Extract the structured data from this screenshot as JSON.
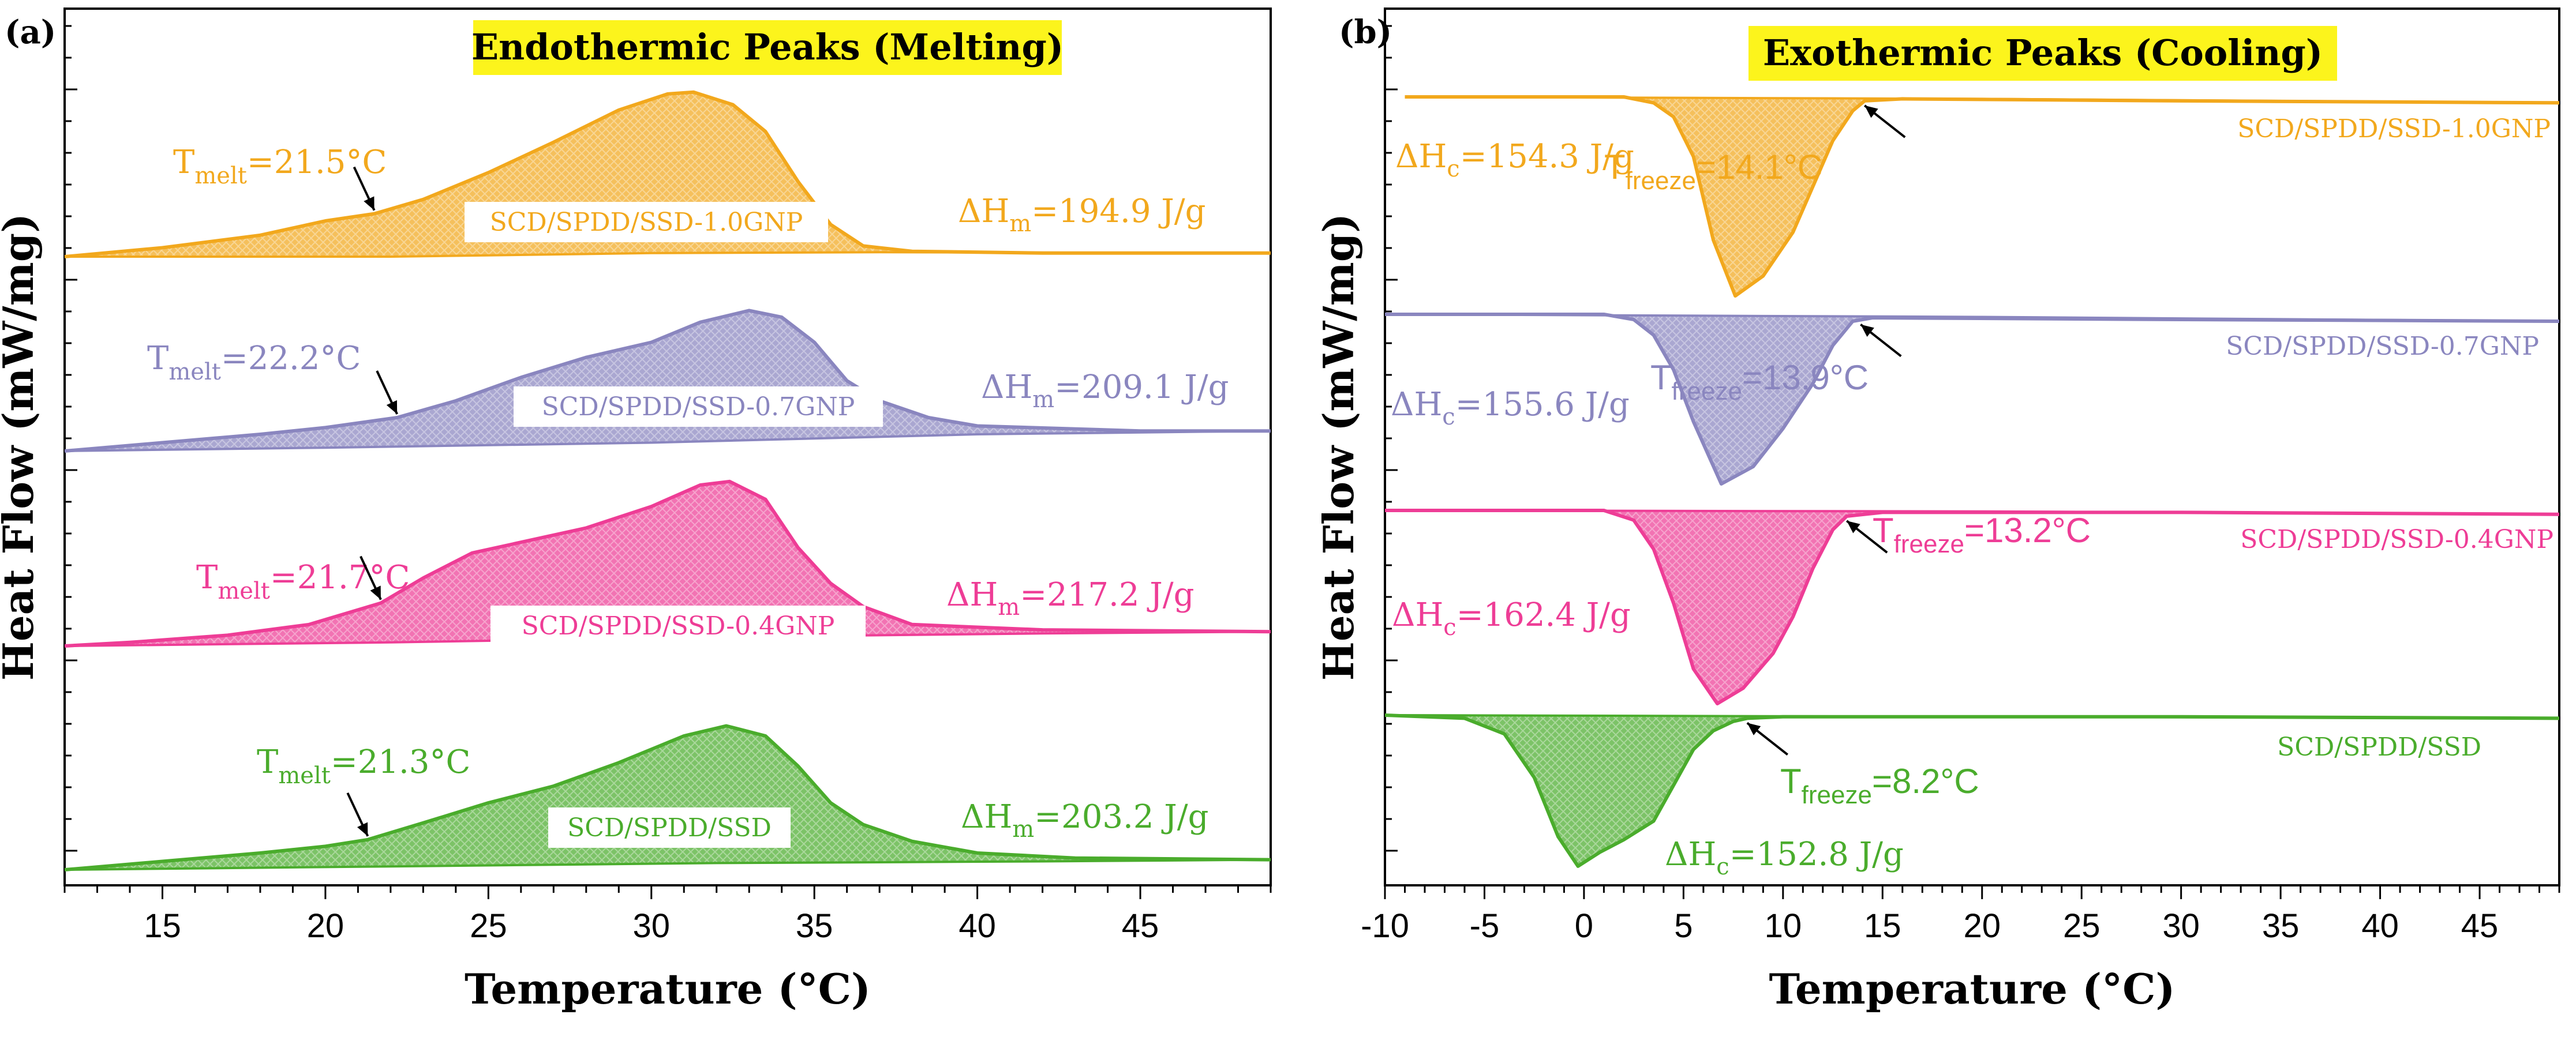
{
  "colors": {
    "orange": "#f2a81d",
    "purple": "#8a86bf",
    "pink": "#ee3d96",
    "green": "#4aac2c",
    "highlight": "#fcf41c"
  },
  "chart_data": [
    {
      "type": "line",
      "panel": "(a)",
      "title": "Endothermic Peaks (Melting)",
      "xlabel": "Temperature (°C)",
      "ylabel": "Heat Flow (mW/mg)",
      "xlim": [
        12,
        49
      ],
      "xticks": [
        15,
        20,
        25,
        30,
        35,
        40,
        45
      ],
      "xtick_labels": [
        "15",
        "20",
        "25",
        "30",
        "35",
        "40",
        "45"
      ],
      "grid": false,
      "series": [
        {
          "name": "SCD/SPDD/SSD-1.0GNP",
          "color": "orange",
          "peak_temp": 31.3,
          "peak_height": 0.92,
          "onset": {
            "label": "T",
            "sub": "melt",
            "value": "=21.5°C",
            "temp": 21.5
          },
          "enthalpy": {
            "label": "ΔH",
            "sub": "m",
            "value": "=194.9 J/g"
          },
          "curve": [
            [
              12,
              0
            ],
            [
              15,
              0.05
            ],
            [
              18,
              0.12
            ],
            [
              20,
              0.2
            ],
            [
              21.5,
              0.24
            ],
            [
              23,
              0.32
            ],
            [
              25,
              0.47
            ],
            [
              27,
              0.64
            ],
            [
              29,
              0.82
            ],
            [
              30.5,
              0.91
            ],
            [
              31.3,
              0.92
            ],
            [
              32.5,
              0.85
            ],
            [
              33.5,
              0.7
            ],
            [
              34.5,
              0.42
            ],
            [
              35.5,
              0.18
            ],
            [
              36.5,
              0.06
            ],
            [
              38,
              0.03
            ],
            [
              42,
              0.02
            ],
            [
              49,
              0.02
            ]
          ],
          "baseline": [
            [
              12,
              0
            ],
            [
              22,
              0.0
            ],
            [
              30,
              0.02
            ],
            [
              37,
              0.025
            ],
            [
              49,
              0.02
            ]
          ]
        },
        {
          "name": "SCD/SPDD/SSD-0.7GNP",
          "color": "purple",
          "peak_temp": 33.0,
          "peak_height": 0.84,
          "onset": {
            "label": "T",
            "sub": "melt",
            "value": "=22.2°C",
            "temp": 22.2
          },
          "enthalpy": {
            "label": "ΔH",
            "sub": "m",
            "value": "=209.1 J/g"
          },
          "curve": [
            [
              12,
              0
            ],
            [
              15,
              0.05
            ],
            [
              18,
              0.1
            ],
            [
              20,
              0.14
            ],
            [
              22.2,
              0.2
            ],
            [
              24,
              0.3
            ],
            [
              26,
              0.44
            ],
            [
              28,
              0.56
            ],
            [
              30,
              0.65
            ],
            [
              31.5,
              0.77
            ],
            [
              33,
              0.84
            ],
            [
              34,
              0.8
            ],
            [
              35,
              0.65
            ],
            [
              36,
              0.42
            ],
            [
              37,
              0.3
            ],
            [
              38.5,
              0.2
            ],
            [
              40,
              0.15
            ],
            [
              45,
              0.12
            ],
            [
              49,
              0.12
            ]
          ],
          "baseline": [
            [
              12,
              0
            ],
            [
              20,
              0.02
            ],
            [
              30,
              0.05
            ],
            [
              40,
              0.1
            ],
            [
              49,
              0.12
            ]
          ]
        },
        {
          "name": "SCD/SPDD/SSD-0.4GNP",
          "color": "pink",
          "peak_temp": 32.4,
          "peak_height": 0.92,
          "onset": {
            "label": "T",
            "sub": "melt",
            "value": "=21.7°C",
            "temp": 21.7
          },
          "enthalpy": {
            "label": "ΔH",
            "sub": "m",
            "value": "=217.2 J/g"
          },
          "curve": [
            [
              12,
              0
            ],
            [
              14,
              0.02
            ],
            [
              17,
              0.06
            ],
            [
              19.5,
              0.12
            ],
            [
              21.7,
              0.24
            ],
            [
              23,
              0.38
            ],
            [
              24.5,
              0.52
            ],
            [
              26,
              0.58
            ],
            [
              28,
              0.66
            ],
            [
              30,
              0.78
            ],
            [
              31.5,
              0.9
            ],
            [
              32.4,
              0.92
            ],
            [
              33.5,
              0.82
            ],
            [
              34.5,
              0.55
            ],
            [
              35.5,
              0.35
            ],
            [
              36.5,
              0.22
            ],
            [
              38,
              0.12
            ],
            [
              42,
              0.09
            ],
            [
              49,
              0.08
            ]
          ],
          "baseline": [
            [
              12,
              0
            ],
            [
              22,
              0.02
            ],
            [
              32,
              0.05
            ],
            [
              42,
              0.07
            ],
            [
              49,
              0.08
            ]
          ]
        },
        {
          "name": "SCD/SPDD/SSD",
          "color": "green",
          "peak_temp": 32.3,
          "peak_height": 0.86,
          "onset": {
            "label": "T",
            "sub": "melt",
            "value": "=21.3°C",
            "temp": 21.3
          },
          "enthalpy": {
            "label": "ΔH",
            "sub": "m",
            "value": "=203.2 J/g"
          },
          "curve": [
            [
              12,
              0
            ],
            [
              15,
              0.05
            ],
            [
              18,
              0.1
            ],
            [
              20,
              0.14
            ],
            [
              21.3,
              0.18
            ],
            [
              23,
              0.28
            ],
            [
              25,
              0.4
            ],
            [
              27,
              0.5
            ],
            [
              29,
              0.64
            ],
            [
              31,
              0.8
            ],
            [
              32.3,
              0.86
            ],
            [
              33.5,
              0.8
            ],
            [
              34.5,
              0.62
            ],
            [
              35.5,
              0.4
            ],
            [
              36.5,
              0.27
            ],
            [
              38,
              0.17
            ],
            [
              40,
              0.1
            ],
            [
              43,
              0.07
            ],
            [
              49,
              0.06
            ]
          ],
          "baseline": [
            [
              12,
              0
            ],
            [
              22,
              0.02
            ],
            [
              32,
              0.04
            ],
            [
              42,
              0.05
            ],
            [
              49,
              0.06
            ]
          ]
        }
      ]
    },
    {
      "type": "line",
      "panel": "(b)",
      "title": "Exothermic Peaks (Cooling)",
      "xlabel": "Temperature (°C)",
      "ylabel": "Heat Flow (mW/mg)",
      "xlim": [
        -10,
        49
      ],
      "xticks": [
        -10,
        -5,
        0,
        5,
        10,
        15,
        20,
        25,
        30,
        35,
        40,
        45
      ],
      "xtick_labels": [
        "-10",
        "-5",
        "0",
        "5",
        "10",
        "15",
        "20",
        "25",
        "30",
        "35",
        "40",
        "45"
      ],
      "grid": false,
      "series": [
        {
          "name": "SCD/SPDD/SSD-1.0GNP",
          "color": "orange",
          "peak_temp": 7.6,
          "peak_depth": 1.0,
          "onset": {
            "label": "T",
            "sub": "freeze",
            "value": "=14.1°C",
            "temp": 14.1
          },
          "enthalpy": {
            "label": "ΔH",
            "sub": "c",
            "value": "=154.3 J/g"
          },
          "curve": [
            [
              -9,
              0
            ],
            [
              2,
              0.0
            ],
            [
              3.5,
              0.03
            ],
            [
              4.5,
              0.1
            ],
            [
              5.5,
              0.3
            ],
            [
              6.5,
              0.72
            ],
            [
              7.6,
              1.0
            ],
            [
              9,
              0.9
            ],
            [
              10.5,
              0.68
            ],
            [
              11.5,
              0.45
            ],
            [
              12.5,
              0.22
            ],
            [
              13.5,
              0.07
            ],
            [
              14.1,
              0.02
            ],
            [
              16,
              0.01
            ],
            [
              30,
              0.02
            ],
            [
              49,
              0.03
            ]
          ],
          "baseline": [
            [
              -9,
              0
            ],
            [
              20,
              0.01
            ],
            [
              49,
              0.03
            ]
          ]
        },
        {
          "name": "SCD/SPDD/SSD-0.7GNP",
          "color": "purple",
          "peak_temp": 6.9,
          "peak_depth": 0.98,
          "onset": {
            "label": "T",
            "sub": "freeze",
            "value": "=13.9°C",
            "temp": 13.9
          },
          "enthalpy": {
            "label": "ΔH",
            "sub": "c",
            "value": "=155.6 J/g"
          },
          "curve": [
            [
              -10,
              0
            ],
            [
              1,
              0.0
            ],
            [
              2.5,
              0.03
            ],
            [
              3.5,
              0.12
            ],
            [
              4.5,
              0.32
            ],
            [
              5.5,
              0.62
            ],
            [
              6.9,
              0.98
            ],
            [
              8.5,
              0.88
            ],
            [
              10,
              0.66
            ],
            [
              11.5,
              0.4
            ],
            [
              12.5,
              0.18
            ],
            [
              13.5,
              0.04
            ],
            [
              14.5,
              0.02
            ],
            [
              30,
              0.03
            ],
            [
              49,
              0.04
            ]
          ],
          "baseline": [
            [
              -10,
              0
            ],
            [
              20,
              0.015
            ],
            [
              49,
              0.04
            ]
          ]
        },
        {
          "name": "SCD/SPDD/SSD-0.4GNP",
          "color": "pink",
          "peak_temp": 6.7,
          "peak_depth": 1.0,
          "onset": {
            "label": "T",
            "sub": "freeze",
            "value": "=13.2°C",
            "temp": 13.2
          },
          "enthalpy": {
            "label": "ΔH",
            "sub": "c",
            "value": "=162.4 J/g"
          },
          "curve": [
            [
              -10,
              0
            ],
            [
              1,
              0.0
            ],
            [
              2.5,
              0.05
            ],
            [
              3.5,
              0.2
            ],
            [
              4.5,
              0.48
            ],
            [
              5.5,
              0.82
            ],
            [
              6.7,
              1.0
            ],
            [
              8,
              0.92
            ],
            [
              9.5,
              0.74
            ],
            [
              10.5,
              0.55
            ],
            [
              11.5,
              0.3
            ],
            [
              12.5,
              0.1
            ],
            [
              13.2,
              0.03
            ],
            [
              15,
              0.01
            ],
            [
              30,
              0.01
            ],
            [
              49,
              0.02
            ]
          ],
          "baseline": [
            [
              -10,
              0
            ],
            [
              20,
              0.005
            ],
            [
              49,
              0.02
            ]
          ]
        },
        {
          "name": "SCD/SPDD/SSD",
          "color": "green",
          "peak_temp": -0.3,
          "peak_depth": 0.97,
          "onset": {
            "label": "T",
            "sub": "freeze",
            "value": "=8.2°C",
            "temp": 8.2
          },
          "enthalpy": {
            "label": "ΔH",
            "sub": "c",
            "value": "=152.8 J/g"
          },
          "curve": [
            [
              -10,
              0
            ],
            [
              -6,
              0.02
            ],
            [
              -4,
              0.12
            ],
            [
              -2.5,
              0.4
            ],
            [
              -1.3,
              0.78
            ],
            [
              -0.3,
              0.97
            ],
            [
              0.8,
              0.88
            ],
            [
              2,
              0.8
            ],
            [
              3.5,
              0.68
            ],
            [
              4.5,
              0.45
            ],
            [
              5.5,
              0.22
            ],
            [
              6.5,
              0.1
            ],
            [
              7.5,
              0.04
            ],
            [
              8.2,
              0.02
            ],
            [
              10,
              0.01
            ],
            [
              30,
              0.01
            ],
            [
              49,
              0.02
            ]
          ],
          "baseline": [
            [
              -10,
              0
            ],
            [
              20,
              0.01
            ],
            [
              49,
              0.02
            ]
          ]
        }
      ]
    }
  ]
}
